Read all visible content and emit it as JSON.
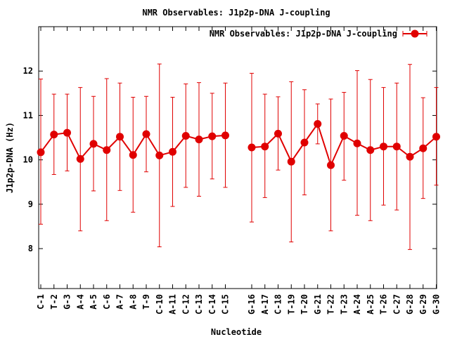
{
  "chart_data": {
    "type": "line",
    "title": "NMR Observables: J1p2p-DNA J-coupling",
    "xlabel": "Nucleotide",
    "ylabel": "J1p2p-DNA (Hz)",
    "ylim": [
      7.1,
      13.0
    ],
    "yticks": [
      8,
      9,
      10,
      11,
      12
    ],
    "grid": false,
    "legend_position": "top-right",
    "series": [
      {
        "name": "NMR Observables: J1p2p-DNA J-coupling",
        "color": "#e00000",
        "marker": "circle",
        "segments": [
          {
            "categories": [
              "C-1",
              "T-2",
              "G-3",
              "A-4",
              "A-5",
              "C-6",
              "A-7",
              "A-8",
              "T-9",
              "C-10",
              "A-11",
              "C-12",
              "C-13",
              "C-14",
              "C-15"
            ],
            "values": [
              10.17,
              10.57,
              10.61,
              10.02,
              10.36,
              10.22,
              10.52,
              10.11,
              10.58,
              10.1,
              10.18,
              10.54,
              10.46,
              10.53,
              10.55
            ],
            "err_low": [
              8.55,
              9.67,
              9.75,
              8.4,
              9.3,
              8.63,
              9.31,
              8.82,
              9.73,
              8.04,
              8.95,
              9.38,
              9.18,
              9.57,
              9.38
            ],
            "err_high": [
              11.82,
              11.48,
              11.48,
              11.63,
              11.43,
              11.83,
              11.73,
              11.41,
              11.43,
              12.16,
              11.41,
              11.71,
              11.74,
              11.5,
              11.73
            ]
          },
          {
            "categories": [
              "G-16",
              "A-17",
              "C-18",
              "T-19",
              "T-20",
              "G-21",
              "T-22",
              "T-23",
              "A-24",
              "A-25",
              "T-26",
              "C-27",
              "G-28",
              "G-29",
              "G-30"
            ],
            "values": [
              10.28,
              10.3,
              10.59,
              9.96,
              10.39,
              10.81,
              9.88,
              10.54,
              10.37,
              10.22,
              10.3,
              10.3,
              10.07,
              10.26,
              10.52
            ],
            "err_low": [
              8.6,
              9.15,
              9.77,
              8.15,
              9.21,
              10.36,
              8.4,
              9.54,
              8.75,
              8.63,
              8.98,
              8.87,
              7.98,
              9.13,
              9.43
            ],
            "err_high": [
              11.95,
              11.48,
              11.42,
              11.76,
              11.58,
              11.26,
              11.37,
              11.52,
              12.01,
              11.81,
              11.63,
              11.73,
              12.15,
              11.4,
              11.63
            ]
          }
        ]
      }
    ]
  }
}
